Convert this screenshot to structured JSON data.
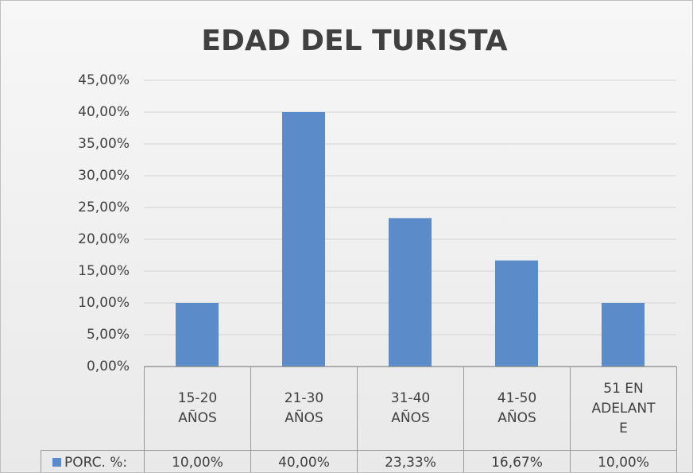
{
  "chart_data": {
    "type": "bar",
    "title": "EDAD DEL TURISTA",
    "categories": [
      "15-20 AÑOS",
      "21-30 AÑOS",
      "31-40 AÑOS",
      "41-50 AÑOS",
      "51 EN ADELANTE"
    ],
    "series": [
      {
        "name": "PORC. %:",
        "color": "#5b8bc9",
        "values": [
          10,
          40,
          23.33,
          16.67,
          10
        ],
        "value_labels": [
          "10,00%",
          "40,00%",
          "23,33%",
          "16,67%",
          "10,00%"
        ]
      }
    ],
    "ylim": [
      0,
      45
    ],
    "yticks": [
      {
        "value": 0,
        "label": "0,00%"
      },
      {
        "value": 5,
        "label": "5,00%"
      },
      {
        "value": 10,
        "label": "10,00%"
      },
      {
        "value": 15,
        "label": "15,00%"
      },
      {
        "value": 20,
        "label": "20,00%"
      },
      {
        "value": 25,
        "label": "25,00%"
      },
      {
        "value": 30,
        "label": "30,00%"
      },
      {
        "value": 35,
        "label": "35,00%"
      },
      {
        "value": 40,
        "label": "40,00%"
      },
      {
        "value": 45,
        "label": "45,00%"
      }
    ],
    "grid": true
  }
}
